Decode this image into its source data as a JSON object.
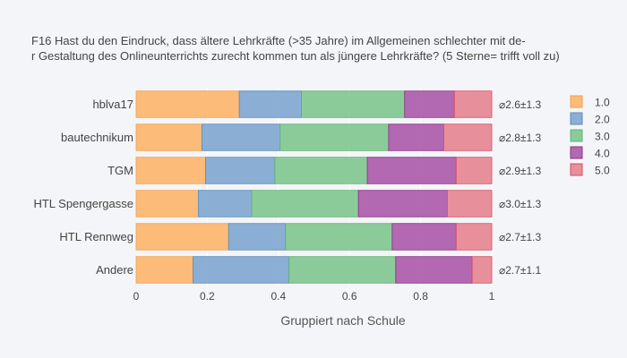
{
  "chart_data": {
    "type": "bar",
    "orientation": "horizontal",
    "stacked": true,
    "normalized": true,
    "title_lines": [
      "F16 Hast du den Eindruck, dass  ältere Lehrkräfte (>35 Jahre) im Allgemeinen schlechter mit de-",
      "r Gestaltung des  Onlineunterrichts zurecht kommen tun als jüngere Lehrkräfte? (5 Sterne= trifft voll zu)"
    ],
    "xlabel": "Gruppiert nach Schule",
    "xlim": [
      0,
      1
    ],
    "x_ticks": [
      "0",
      "0.2",
      "0.4",
      "0.6",
      "0.8",
      "1"
    ],
    "x_tick_values": [
      0,
      0.2,
      0.4,
      0.6,
      0.8,
      1
    ],
    "categories": [
      "hblva17",
      "bautechnikum",
      "TGM",
      "HTL Spengergasse",
      "HTL Rennweg",
      "Andere"
    ],
    "series": [
      {
        "name": "1.0",
        "color": "#fdb56a",
        "stroke": "#f5a04a",
        "values": [
          0.29,
          0.185,
          0.195,
          0.175,
          0.26,
          0.16
        ]
      },
      {
        "name": "2.0",
        "color": "#7fa6cf",
        "stroke": "#5b8bbd",
        "values": [
          0.175,
          0.22,
          0.195,
          0.15,
          0.16,
          0.27
        ]
      },
      {
        "name": "3.0",
        "color": "#7fc68f",
        "stroke": "#5fb272",
        "values": [
          0.29,
          0.305,
          0.26,
          0.3,
          0.3,
          0.3
        ]
      },
      {
        "name": "4.0",
        "color": "#ab5aa8",
        "stroke": "#8b2f88",
        "values": [
          0.14,
          0.155,
          0.25,
          0.25,
          0.18,
          0.215
        ]
      },
      {
        "name": "5.0",
        "color": "#e58590",
        "stroke": "#d94d62",
        "values": [
          0.105,
          0.135,
          0.1,
          0.125,
          0.1,
          0.055
        ]
      }
    ],
    "annotations": [
      "⌀2.6±1.3",
      "⌀2.8±1.3",
      "⌀2.9±1.3",
      "⌀3.0±1.3",
      "⌀2.7±1.3",
      "⌀2.7±1.1"
    ],
    "legend": {
      "position": "right",
      "entries": [
        "1.0",
        "2.0",
        "3.0",
        "4.0",
        "5.0"
      ]
    },
    "grid": true
  }
}
